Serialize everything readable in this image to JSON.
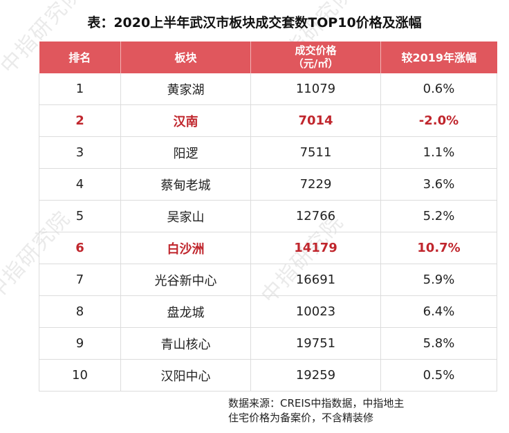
{
  "watermark": "中指研究院",
  "title": "表：2020上半年武汉市板块成交套数TOP10价格及涨幅",
  "table": {
    "headers": {
      "rank": "排名",
      "district": "板块",
      "price_line1": "成交价格",
      "price_line2": "（元/㎡）",
      "change": "较2019年涨幅"
    },
    "rows": [
      {
        "rank": "1",
        "district": "黄家湖",
        "price": "11079",
        "change": "0.6%"
      },
      {
        "rank": "2",
        "district": "汉南",
        "price": "7014",
        "change": "-2.0%"
      },
      {
        "rank": "3",
        "district": "阳逻",
        "price": "7511",
        "change": "1.1%"
      },
      {
        "rank": "4",
        "district": "蔡甸老城",
        "price": "7229",
        "change": "3.6%"
      },
      {
        "rank": "5",
        "district": "吴家山",
        "price": "12766",
        "change": "5.2%"
      },
      {
        "rank": "6",
        "district": "白沙洲",
        "price": "14179",
        "change": "10.7%"
      },
      {
        "rank": "7",
        "district": "光谷新中心",
        "price": "16691",
        "change": "5.9%"
      },
      {
        "rank": "8",
        "district": "盘龙城",
        "price": "10023",
        "change": "6.4%"
      },
      {
        "rank": "9",
        "district": "青山核心",
        "price": "19751",
        "change": "5.8%"
      },
      {
        "rank": "10",
        "district": "汉阳中心",
        "price": "19259",
        "change": "0.5%"
      }
    ]
  },
  "note": {
    "line1": "数据来源：CREIS中指数据，中指地主",
    "line2": "住宅价格为备案价，不含精装修"
  },
  "colors": {
    "header_bg": "#e0575d",
    "highlight_text": "#c0262d"
  }
}
